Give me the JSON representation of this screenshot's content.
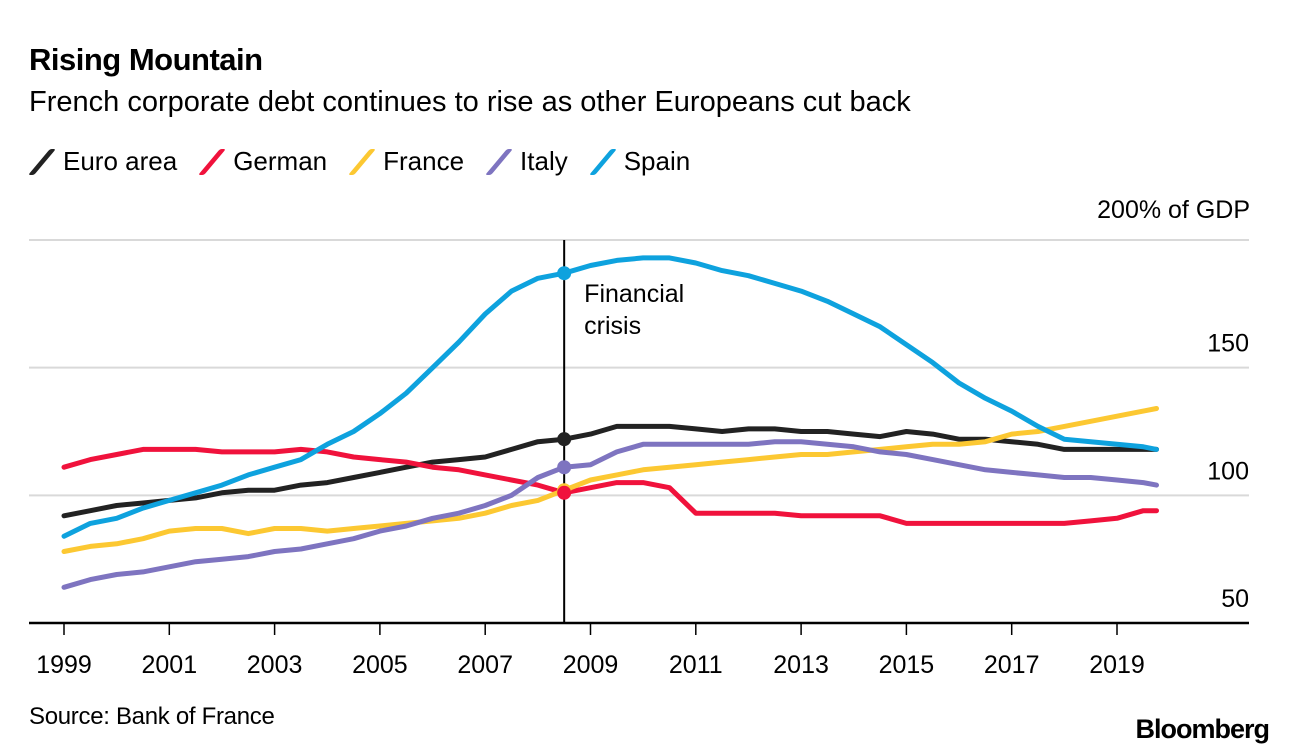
{
  "header": {
    "title": "Rising Mountain",
    "subtitle": "French corporate debt continues to rise as other Europeans cut back"
  },
  "legend": [
    {
      "label": "Euro area",
      "color": "#222222"
    },
    {
      "label": "German",
      "color": "#f0123c"
    },
    {
      "label": "France",
      "color": "#fcc832"
    },
    {
      "label": "Italy",
      "color": "#7e74c0"
    },
    {
      "label": "Spain",
      "color": "#0ea2de"
    }
  ],
  "footer": {
    "source": "Source: Bank of France",
    "brand": "Bloomberg"
  },
  "chart_data": {
    "type": "line",
    "title": "Rising Mountain",
    "subtitle": "French corporate debt continues to rise as other Europeans cut back",
    "xlabel": "",
    "ylabel": "% of GDP",
    "unit_label": "200% of GDP",
    "ylim": [
      50,
      200
    ],
    "xlim": [
      1998.35,
      2021.4
    ],
    "yticks": [
      50,
      100,
      150,
      200
    ],
    "ytick_labels": [
      "50",
      "100",
      "150",
      "200% of GDP"
    ],
    "xticks": [
      1999,
      2001,
      2003,
      2005,
      2007,
      2009,
      2011,
      2013,
      2015,
      2017,
      2019
    ],
    "xtick_labels": [
      "1999",
      "2001",
      "2003",
      "2005",
      "2007",
      "2009",
      "2011",
      "2013",
      "2015",
      "2017",
      "2019"
    ],
    "grid": true,
    "legend_position": "top-left",
    "annotation": {
      "x": 2008.5,
      "label_lines": [
        "Financial",
        "crisis"
      ]
    },
    "x": [
      1999.0,
      1999.5,
      2000.0,
      2000.5,
      2001.0,
      2001.5,
      2002.0,
      2002.5,
      2003.0,
      2003.5,
      2004.0,
      2004.5,
      2005.0,
      2005.5,
      2006.0,
      2006.5,
      2007.0,
      2007.5,
      2008.0,
      2008.5,
      2009.0,
      2009.5,
      2010.0,
      2010.5,
      2011.0,
      2011.5,
      2012.0,
      2012.5,
      2013.0,
      2013.5,
      2014.0,
      2014.5,
      2015.0,
      2015.5,
      2016.0,
      2016.5,
      2017.0,
      2017.5,
      2018.0,
      2018.5,
      2019.0,
      2019.5,
      2019.75
    ],
    "series": [
      {
        "name": "Euro area",
        "color": "#222222",
        "values": [
          92,
          94,
          96,
          97,
          98,
          99,
          101,
          102,
          102,
          104,
          105,
          107,
          109,
          111,
          113,
          114,
          115,
          118,
          121,
          122,
          124,
          127,
          127,
          127,
          126,
          125,
          126,
          126,
          125,
          125,
          124,
          123,
          125,
          124,
          122,
          122,
          121,
          120,
          118,
          118,
          118,
          118,
          118
        ]
      },
      {
        "name": "German",
        "color": "#f0123c",
        "values": [
          111,
          114,
          116,
          118,
          118,
          118,
          117,
          117,
          117,
          118,
          117,
          115,
          114,
          113,
          111,
          110,
          108,
          106,
          104,
          101,
          103,
          105,
          105,
          103,
          93,
          93,
          93,
          93,
          92,
          92,
          92,
          92,
          89,
          89,
          89,
          89,
          89,
          89,
          89,
          90,
          91,
          94,
          94
        ]
      },
      {
        "name": "France",
        "color": "#fcc832",
        "values": [
          78,
          80,
          81,
          83,
          86,
          87,
          87,
          85,
          87,
          87,
          86,
          87,
          88,
          89,
          90,
          91,
          93,
          96,
          98,
          102,
          106,
          108,
          110,
          111,
          112,
          113,
          114,
          115,
          116,
          116,
          117,
          118,
          119,
          120,
          120,
          121,
          124,
          125,
          127,
          129,
          131,
          133,
          134
        ]
      },
      {
        "name": "Italy",
        "color": "#7e74c0",
        "values": [
          64,
          67,
          69,
          70,
          72,
          74,
          75,
          76,
          78,
          79,
          81,
          83,
          86,
          88,
          91,
          93,
          96,
          100,
          107,
          111,
          112,
          117,
          120,
          120,
          120,
          120,
          120,
          121,
          121,
          120,
          119,
          117,
          116,
          114,
          112,
          110,
          109,
          108,
          107,
          107,
          106,
          105,
          104
        ]
      },
      {
        "name": "Spain",
        "color": "#0ea2de",
        "values": [
          84,
          89,
          91,
          95,
          98,
          101,
          104,
          108,
          111,
          114,
          120,
          125,
          132,
          140,
          150,
          160,
          171,
          180,
          185,
          187,
          190,
          192,
          193,
          193,
          191,
          188,
          186,
          183,
          180,
          176,
          171,
          166,
          159,
          152,
          144,
          138,
          133,
          127,
          122,
          121,
          120,
          119,
          118
        ]
      }
    ],
    "highlight_points": [
      {
        "series": "Spain",
        "x": 2008.5,
        "y": 187
      },
      {
        "series": "Euro area",
        "x": 2008.5,
        "y": 122
      },
      {
        "series": "Italy",
        "x": 2008.5,
        "y": 111
      },
      {
        "series": "France",
        "x": 2008.5,
        "y": 102
      },
      {
        "series": "German",
        "x": 2008.5,
        "y": 101
      }
    ]
  }
}
